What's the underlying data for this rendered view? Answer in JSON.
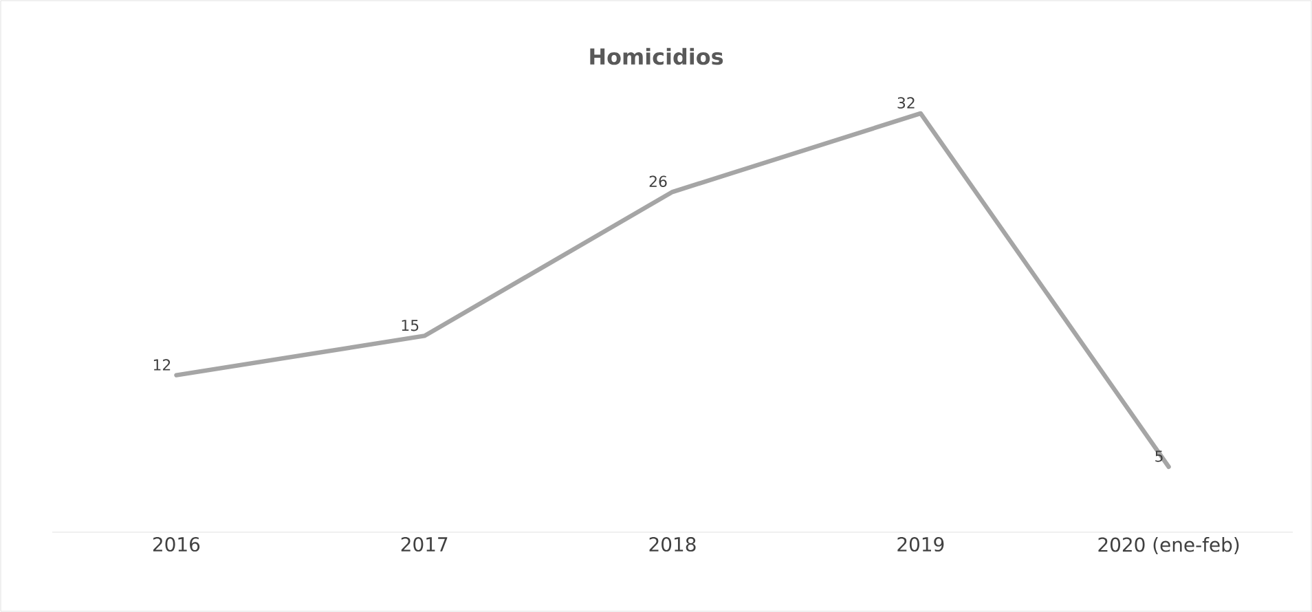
{
  "chart_data": {
    "type": "line",
    "title": "Homicidios",
    "categories": [
      "2016",
      "2017",
      "2018",
      "2019",
      "2020 (ene-feb)"
    ],
    "series": [
      {
        "color": "#a5a5a5",
        "values": [
          12,
          15,
          26,
          32,
          5
        ]
      }
    ],
    "data_labels": true,
    "grid": false,
    "marker": "none",
    "line_style": "solid",
    "tick_labels": "x"
  }
}
